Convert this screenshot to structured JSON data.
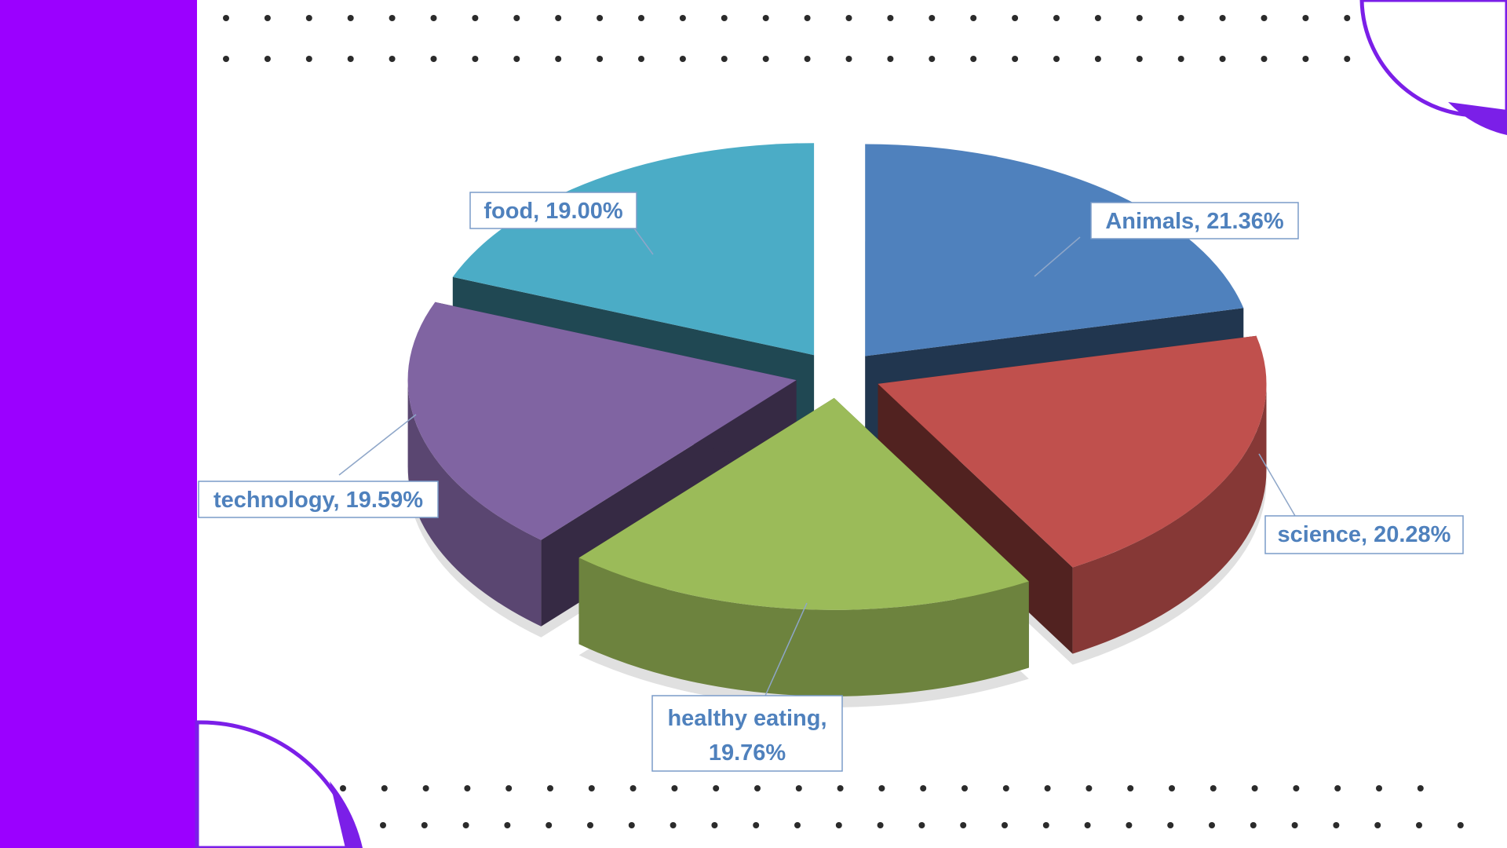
{
  "colors": {
    "sidebar": "#9B00FF",
    "accent_arc": "#7B1FE8",
    "dot": "#2B2B2B",
    "label_text": "#4F81BD",
    "label_border": "#7A9CC9",
    "leader": "#8EA6C8"
  },
  "chart_data": {
    "type": "pie",
    "style": "3d-exploded",
    "title": "",
    "legend": "none",
    "categories": [
      "Animals",
      "science",
      "healthy eating",
      "technology",
      "food"
    ],
    "values": [
      21.36,
      20.28,
      19.76,
      19.59,
      19.0
    ],
    "series": [
      {
        "values": [
          21.36,
          20.28,
          19.76,
          19.59,
          19.0
        ],
        "colors": [
          "#4F81BD",
          "#C0504D",
          "#9BBB59",
          "#8064A2",
          "#4BACC6"
        ]
      }
    ],
    "data_labels": [
      {
        "lines": [
          "Animals, 21.36%"
        ]
      },
      {
        "lines": [
          "science, 20.28%"
        ]
      },
      {
        "lines": [
          "healthy eating,",
          "19.76%"
        ]
      },
      {
        "lines": [
          "technology, 19.59%"
        ]
      },
      {
        "lines": [
          "food, 19.00%"
        ]
      }
    ]
  }
}
